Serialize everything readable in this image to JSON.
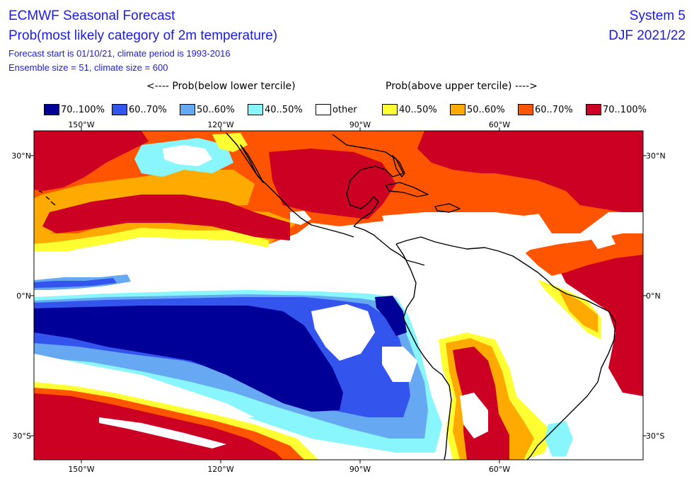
{
  "header": {
    "title": "ECMWF Seasonal Forecast",
    "subtitle": "Prob(most likely category of 2m temperature)",
    "forecast_start": "Forecast start is 01/10/21, climate period is 1993-2016",
    "ensemble": "Ensemble size = 51, climate size = 600",
    "system": "System 5",
    "season": "DJF 2021/22"
  },
  "legend": {
    "below_title": "<---- Prob(below lower tercile)",
    "above_title": "Prob(above upper tercile) ---->",
    "items": [
      {
        "label": "70..100%",
        "color": "#000099"
      },
      {
        "label": "60..70%",
        "color": "#3355ee"
      },
      {
        "label": "50..60%",
        "color": "#66a8f2"
      },
      {
        "label": "40..50%",
        "color": "#88f6fc"
      },
      {
        "label": "other",
        "color": "#ffffff"
      },
      {
        "label": "40..50%",
        "color": "#ffff33"
      },
      {
        "label": "50..60%",
        "color": "#ffaa00"
      },
      {
        "label": "60..70%",
        "color": "#ff5500"
      },
      {
        "label": "70..100%",
        "color": "#cc0022"
      }
    ]
  },
  "map": {
    "lon_ticks": [
      "150°W",
      "120°W",
      "90°W",
      "60°W"
    ],
    "lat_ticks_left": [
      "30°N",
      "0°N",
      "30°S"
    ],
    "lat_ticks_right": [
      "30°N",
      "0°N",
      "30°S"
    ],
    "extent": {
      "lon_min": -160,
      "lon_max": -28,
      "lat_min": -35,
      "lat_max": 36
    }
  }
}
